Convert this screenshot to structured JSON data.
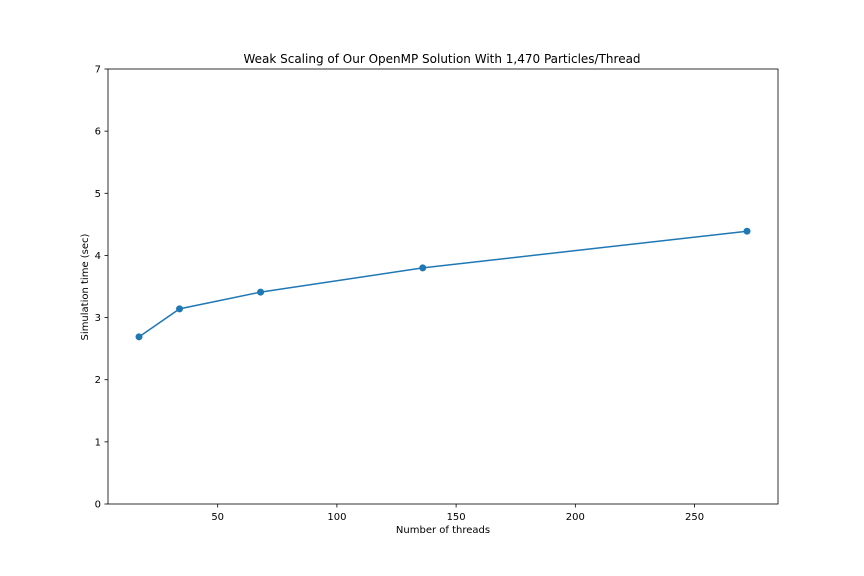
{
  "chart_data": {
    "type": "line",
    "title": "Weak Scaling of Our OpenMP Solution With 1,470 Particles/Thread",
    "xlabel": "Number of threads",
    "ylabel": "Simulation time (sec)",
    "xlim": [
      4,
      285
    ],
    "ylim": [
      0,
      7
    ],
    "xticks": [
      50,
      100,
      150,
      200,
      250
    ],
    "yticks": [
      0,
      1,
      2,
      3,
      4,
      5,
      6,
      7
    ],
    "grid": false,
    "marker": "circle",
    "color": "#1f77b4",
    "series": [
      {
        "x": [
          17,
          34,
          68,
          136,
          272
        ],
        "y": [
          2.69,
          3.14,
          3.41,
          3.8,
          4.39
        ]
      }
    ]
  }
}
